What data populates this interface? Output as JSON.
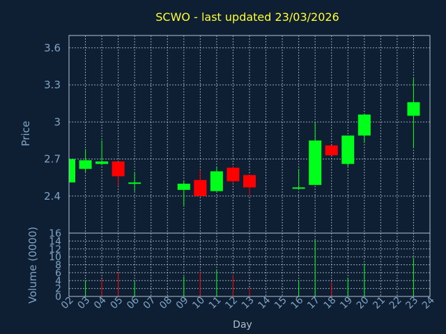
{
  "title": "SCWO - last updated 23/03/2026",
  "colors": {
    "background": "#0f1f33",
    "up": "#00ff1a",
    "down": "#ff0000",
    "title": "#ffff33",
    "axis_text": "#7fa5c4"
  },
  "chart_data": [
    {
      "type": "candlestick",
      "ylabel": "Price",
      "ylim": [
        2.1,
        3.7
      ],
      "yticks": [
        "2.4",
        "2.7",
        "3",
        "3.3",
        "3.6"
      ],
      "yticks_values": [
        2.4,
        2.7,
        3.0,
        3.3,
        3.6
      ],
      "grid": true,
      "x": [
        "02",
        "03",
        "04",
        "05",
        "06",
        "09",
        "10",
        "11",
        "12",
        "13",
        "16",
        "17",
        "18",
        "19",
        "20",
        "23"
      ],
      "x_index": [
        2,
        3,
        4,
        5,
        6,
        9,
        10,
        11,
        12,
        13,
        16,
        17,
        18,
        19,
        20,
        23
      ],
      "open": [
        2.51,
        2.62,
        2.66,
        2.68,
        2.51,
        2.45,
        2.53,
        2.44,
        2.63,
        2.57,
        2.46,
        2.49,
        2.81,
        2.66,
        2.89,
        3.05
      ],
      "close": [
        2.7,
        2.69,
        2.68,
        2.56,
        2.51,
        2.5,
        2.4,
        2.6,
        2.52,
        2.47,
        2.47,
        2.85,
        2.73,
        2.89,
        3.06,
        3.16
      ],
      "high": [
        2.7,
        2.78,
        2.85,
        2.68,
        2.59,
        2.52,
        2.61,
        2.64,
        2.64,
        2.57,
        2.62,
        3.0,
        2.81,
        2.89,
        3.06,
        3.35
      ],
      "low": [
        2.51,
        2.59,
        2.65,
        2.48,
        2.44,
        2.32,
        2.4,
        2.44,
        2.5,
        2.4,
        2.46,
        2.49,
        2.73,
        2.64,
        2.83,
        2.79
      ]
    },
    {
      "type": "bar",
      "ylabel": "Volume (0000)",
      "ylim": [
        0,
        16
      ],
      "yticks": [
        "0",
        "2",
        "4",
        "6",
        "8",
        "10",
        "12",
        "14",
        "16"
      ],
      "yticks_values": [
        0,
        2,
        4,
        6,
        8,
        10,
        12,
        14,
        16
      ],
      "xlabel": "Day",
      "xlim": [
        2,
        24
      ],
      "xticks": [
        "02",
        "03",
        "04",
        "05",
        "06",
        "07",
        "08",
        "09",
        "10",
        "11",
        "12",
        "13",
        "14",
        "15",
        "16",
        "17",
        "18",
        "19",
        "20",
        "21",
        "22",
        "23",
        "24"
      ],
      "xticks_values": [
        2,
        3,
        4,
        5,
        6,
        7,
        8,
        9,
        10,
        11,
        12,
        13,
        14,
        15,
        16,
        17,
        18,
        19,
        20,
        21,
        22,
        23,
        24
      ],
      "x_index": [
        3,
        4,
        5,
        6,
        9,
        10,
        11,
        12,
        13,
        16,
        17,
        18,
        19,
        20,
        23
      ],
      "values": [
        4.0,
        4.4,
        6.0,
        3.7,
        5.0,
        6.3,
        6.6,
        5.5,
        2.2,
        4.0,
        14.3,
        3.5,
        4.6,
        8.3,
        9.8
      ],
      "direction": [
        "up",
        "down",
        "down",
        "up",
        "up",
        "down",
        "up",
        "down",
        "down",
        "up",
        "up",
        "down",
        "up",
        "up",
        "up"
      ]
    }
  ]
}
